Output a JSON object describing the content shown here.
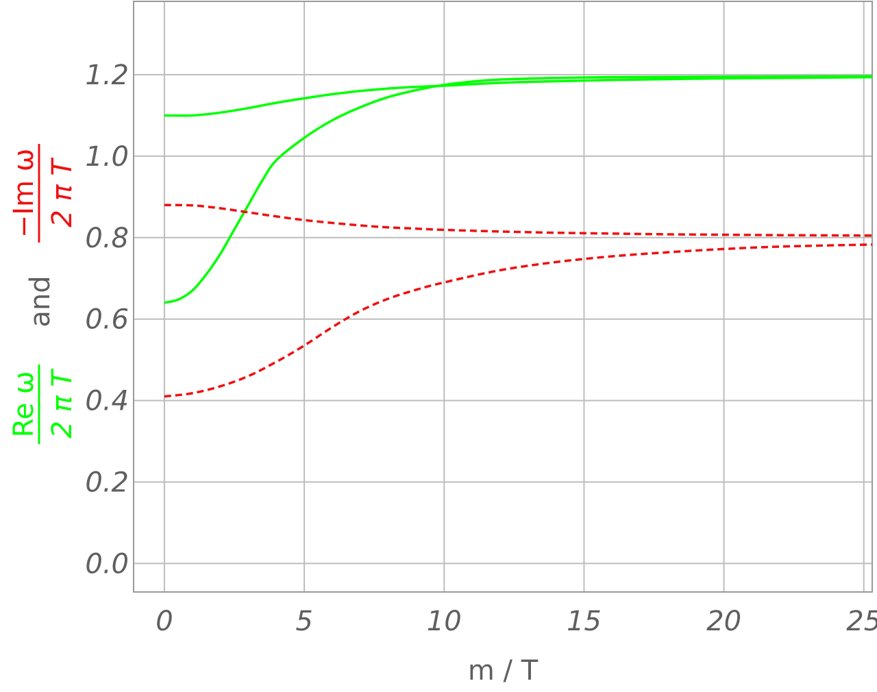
{
  "chart_data": {
    "type": "line",
    "xlabel": "m / T",
    "ylabel": {
      "re_numerator": "Re ω",
      "re_denominator": "2 π T",
      "connector": "and",
      "im_numerator": "−Im ω",
      "im_denominator": "2 π T"
    },
    "xlim": [
      -1.1,
      25.3
    ],
    "ylim": [
      -0.07,
      1.38
    ],
    "xticks": [
      0,
      5,
      10,
      15,
      20,
      25
    ],
    "xtick_labels": [
      "0",
      "5",
      "10",
      "15",
      "20",
      "25"
    ],
    "yticks": [
      0.0,
      0.2,
      0.4,
      0.6,
      0.8,
      1.0,
      1.2
    ],
    "ytick_labels": [
      "0.0",
      "0.2",
      "0.4",
      "0.6",
      "0.8",
      "1.0",
      "1.2"
    ],
    "grid": true,
    "colors": {
      "re": "#00ff00",
      "im": "#ee1111",
      "grid": "#bdbdbd",
      "frame": "#9a9a9a",
      "text": "#5f5f5f"
    },
    "series": [
      {
        "kind": "re",
        "style": "solid",
        "x": [
          0,
          1,
          2,
          3,
          4,
          5,
          6,
          7,
          8,
          9,
          10,
          12,
          14,
          16,
          18,
          20,
          22,
          25.3
        ],
        "y": [
          1.1,
          1.1,
          1.107,
          1.118,
          1.131,
          1.142,
          1.152,
          1.16,
          1.166,
          1.17,
          1.173,
          1.18,
          1.184,
          1.187,
          1.189,
          1.191,
          1.192,
          1.194
        ]
      },
      {
        "kind": "re",
        "style": "solid",
        "x": [
          0,
          0.5,
          1,
          1.5,
          2,
          2.5,
          3,
          3.5,
          4,
          5,
          6,
          7,
          8,
          9,
          10,
          11,
          12,
          14,
          16,
          20,
          25.3
        ],
        "y": [
          0.64,
          0.648,
          0.67,
          0.71,
          0.76,
          0.82,
          0.88,
          0.94,
          0.99,
          1.045,
          1.088,
          1.12,
          1.145,
          1.162,
          1.175,
          1.183,
          1.188,
          1.192,
          1.194,
          1.195,
          1.196
        ]
      },
      {
        "kind": "im",
        "style": "dashed",
        "x": [
          0,
          1,
          2,
          3,
          4,
          5,
          6,
          7,
          8,
          9,
          10,
          12,
          14,
          16,
          18,
          20,
          22,
          25.3
        ],
        "y": [
          0.88,
          0.879,
          0.872,
          0.862,
          0.852,
          0.843,
          0.836,
          0.83,
          0.825,
          0.822,
          0.819,
          0.815,
          0.812,
          0.81,
          0.808,
          0.807,
          0.806,
          0.805
        ]
      },
      {
        "kind": "im",
        "style": "dashed",
        "x": [
          0,
          1,
          2,
          3,
          4,
          5,
          6,
          7,
          8,
          9,
          10,
          12,
          14,
          16,
          18,
          20,
          22,
          25.3
        ],
        "y": [
          0.41,
          0.418,
          0.435,
          0.46,
          0.495,
          0.535,
          0.58,
          0.62,
          0.65,
          0.672,
          0.69,
          0.72,
          0.74,
          0.754,
          0.764,
          0.772,
          0.778,
          0.783
        ]
      }
    ]
  }
}
